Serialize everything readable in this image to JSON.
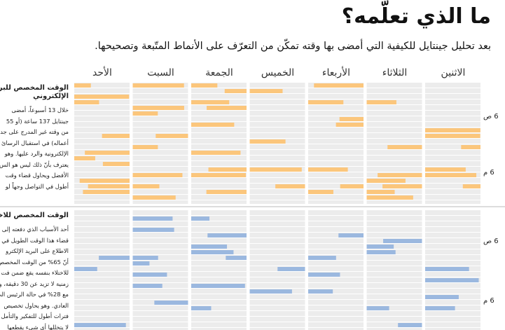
{
  "header": {
    "title": "ما الذي تعلّمه؟",
    "subtitle": "بعد تحليل جينتايل للكيفية التي أمضى بها وقته تمكّن من التعرّف على الأنماط المتّبعة وتصحيحها."
  },
  "days": [
    "الاثنين",
    "الثلاثاء",
    "الأربعاء",
    "الخميس",
    "الجمعة",
    "السبت",
    "الأحد"
  ],
  "panels": [
    {
      "heading": "الوقت المخصص للبريد الإلكتروني",
      "body": [
        "خلال 13 أسبوعاً، أمضى",
        "جينتايل 137 ساعة (أو 55",
        "من وقته غير المدرج على جد",
        "أعماله) في استقبال الرسائ",
        "الإلكترونية والرد عليها. وهو",
        "يعترف بأنّ ذلك ليس هو الس",
        "الأفضل ويحاول قضاء وقت",
        "أطول في التواصل وجهاً لو"
      ],
      "time_labels": [
        "6 ص",
        "6 م"
      ]
    },
    {
      "heading": "الوقت المخصص للاختلاء بالنفس",
      "body": [
        "أحد الأسباب الذي دفعته إلى",
        "قضاء هذا الوقت الطويل في",
        "الاطلاع على البريد الإلكترو",
        "أنّ 65% من الوقت المخصص",
        "للاختلاء بنفسه يقع ضمن فت",
        "زمنية لا تزيد عن 30 دقيقة، و",
        "مع 28% في حالة الرئيس الت",
        "العادي. وهو يحاول تخصيص",
        "فترات أطول للتفكير والتأمل",
        "لا يتخللها أي شيء يقطعها"
      ],
      "time_labels": [
        "6 ص",
        "6 م"
      ]
    }
  ]
}
